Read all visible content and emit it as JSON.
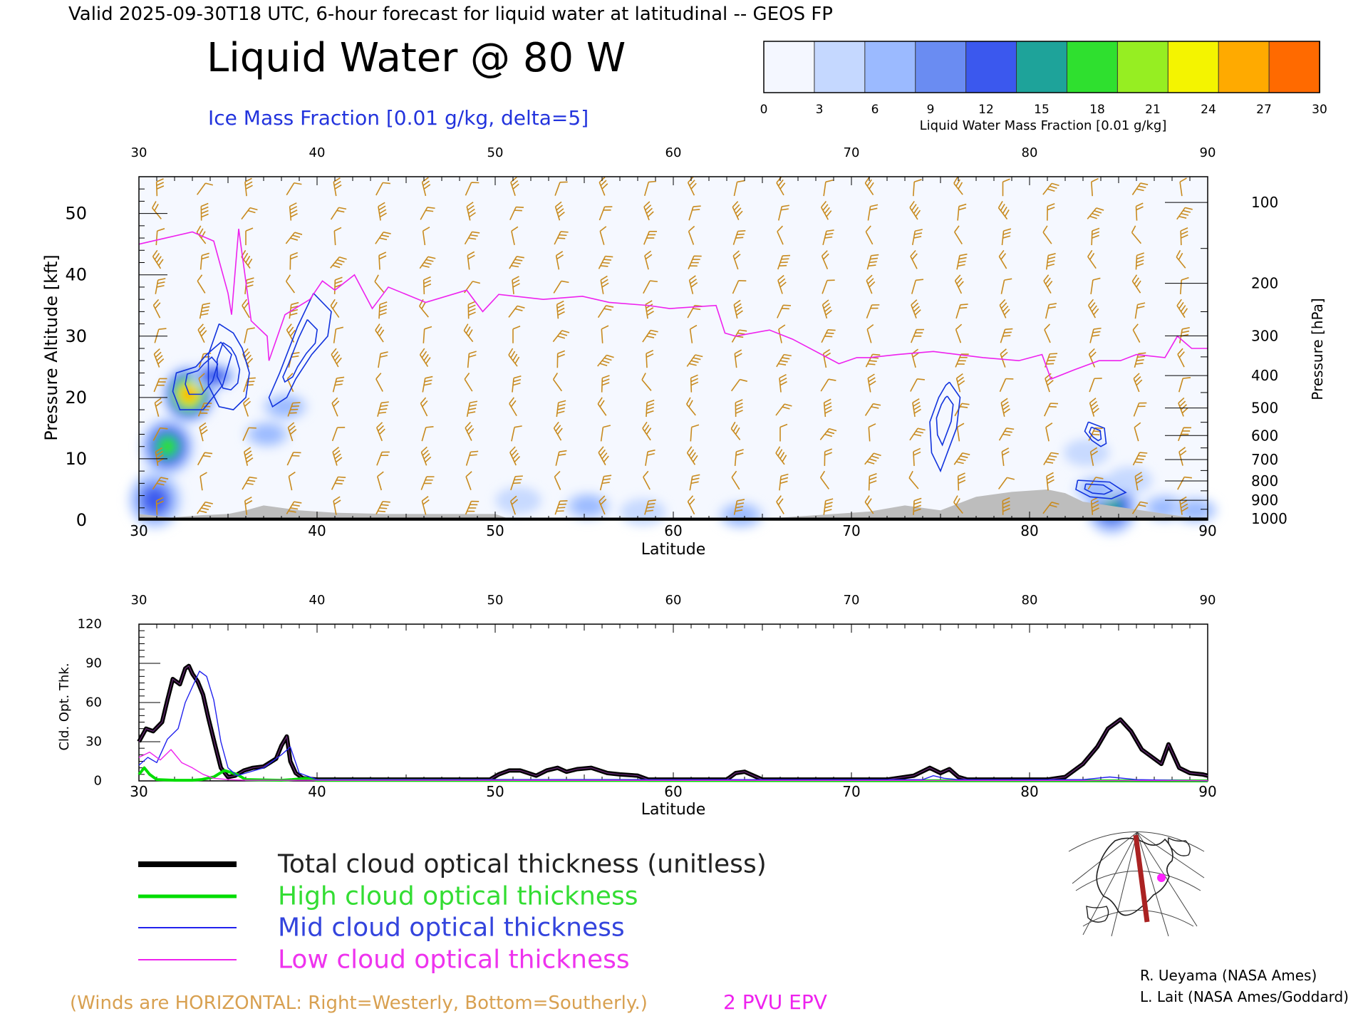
{
  "header": {
    "valid_line": "Valid 2025-09-30T18 UTC, 6-hour forecast for liquid water at latitudinal -- GEOS FP",
    "title": "Liquid Water @ 80 W",
    "ice_label": "Ice Mass Fraction [0.01 g/kg, delta=5]"
  },
  "colorbar": {
    "ticks": [
      "0",
      "3",
      "6",
      "9",
      "12",
      "15",
      "18",
      "21",
      "24",
      "27",
      "30"
    ],
    "label": "Liquid Water Mass Fraction [0.01 g/kg]",
    "colors": [
      "#f4f7ff",
      "#c5d8ff",
      "#9bbaff",
      "#6a8cf2",
      "#3b58ee",
      "#1ea39a",
      "#2fe02f",
      "#96ee22",
      "#f4f400",
      "#ffaa00",
      "#ff6a00"
    ]
  },
  "top_panel": {
    "xlabel": "Latitude",
    "ylabel": "Pressure Altitude [kft]",
    "y2label": "Pressure [hPa]",
    "x_ticks": [
      "30",
      "40",
      "50",
      "60",
      "70",
      "80",
      "90"
    ],
    "y_ticks": [
      "0",
      "10",
      "20",
      "30",
      "40",
      "50"
    ],
    "p_ticks": [
      "100",
      "200",
      "300",
      "400",
      "500",
      "600",
      "700",
      "800",
      "900",
      "1000"
    ]
  },
  "bottom_panel": {
    "xlabel": "Latitude",
    "ylabel": "Cld. Opt. Thk.",
    "x_ticks": [
      "30",
      "40",
      "50",
      "60",
      "70",
      "80",
      "90"
    ],
    "y_ticks": [
      "0",
      "30",
      "60",
      "90",
      "120"
    ]
  },
  "legend": [
    {
      "label": "Total cloud optical thickness (unitless)",
      "color": "#000000"
    },
    {
      "label": "High cloud optical thickness",
      "color": "#00dd00"
    },
    {
      "label": "Mid cloud optical thickness",
      "color": "#2222ee"
    },
    {
      "label": "Low cloud optical thickness",
      "color": "#ee22ee"
    }
  ],
  "footer": {
    "winds_note": "(Winds are HORIZONTAL: Right=Westerly, Bottom=Southerly.)",
    "pvu": "2 PVU EPV",
    "credit1": "R. Ueyama (NASA Ames)",
    "credit2": "L. Lait (NASA Ames/Goddard)"
  },
  "colors": {
    "wind": "#c88a1e",
    "epv": "#ee22ee",
    "ice": "#1133dd",
    "terrain": "#bdbdbd"
  },
  "chart_data": [
    {
      "type": "heatmap",
      "title": "Liquid Water @ 80 W",
      "xlabel": "Latitude",
      "ylabel": "Pressure Altitude [kft]",
      "xlim": [
        30,
        90
      ],
      "ylim": [
        0,
        56
      ],
      "liquid_water_blobs": [
        {
          "lat": 32.8,
          "alt": 20.5,
          "peak": 28
        },
        {
          "lat": 31.6,
          "alt": 12.0,
          "peak": 18
        },
        {
          "lat": 34.2,
          "alt": 23.5,
          "peak": 12
        },
        {
          "lat": 37.2,
          "alt": 14.0,
          "peak": 6
        },
        {
          "lat": 38.2,
          "alt": 18.5,
          "peak": 6
        },
        {
          "lat": 30.9,
          "alt": 3.3,
          "peak": 14
        },
        {
          "lat": 84.6,
          "alt": 2.3,
          "peak": 17
        },
        {
          "lat": 83.8,
          "alt": 5.0,
          "peak": 8
        },
        {
          "lat": 85.6,
          "alt": 6.5,
          "peak": 5
        },
        {
          "lat": 87.6,
          "alt": 2.0,
          "peak": 6
        },
        {
          "lat": 83.2,
          "alt": 11.0,
          "peak": 4
        },
        {
          "lat": 55.2,
          "alt": 2.3,
          "peak": 8
        },
        {
          "lat": 51.3,
          "alt": 3.2,
          "peak": 5
        },
        {
          "lat": 58.3,
          "alt": 1.3,
          "peak": 5
        },
        {
          "lat": 63.8,
          "alt": 0.8,
          "peak": 8
        },
        {
          "lat": 89.3,
          "alt": 1.6,
          "peak": 6
        }
      ],
      "epv_2pvu_line": {
        "lat": [
          30,
          31.5,
          33,
          34.2,
          35.0,
          35.2,
          35.6,
          36.3,
          37.2,
          37.3,
          38.2,
          39.6,
          40.3,
          41.0,
          42.1,
          43.1,
          44.0,
          46.1,
          48.4,
          49.3,
          50.2,
          52.7,
          54.9,
          56.4,
          58.6,
          59.8,
          62.4,
          62.9,
          63.5,
          65.4,
          66.7,
          69.3,
          70.3,
          71.0,
          72.6,
          74.6,
          77.4,
          79.4,
          80.7,
          81.2,
          82.5,
          83.9,
          85.1,
          86.0,
          87.6,
          88.3,
          89.1,
          90
        ],
        "alt_kft": [
          45,
          46,
          47,
          45.5,
          37,
          33.5,
          47.5,
          32.5,
          30,
          26,
          33.5,
          36,
          39,
          37.5,
          40,
          34.5,
          38,
          35.5,
          37.5,
          34,
          36.8,
          36,
          36.5,
          35.5,
          35,
          34.5,
          35,
          30.5,
          30,
          31,
          29.5,
          25.5,
          26.5,
          26.5,
          27,
          27.5,
          26.5,
          26,
          27,
          23,
          24.5,
          26,
          26,
          27,
          26.5,
          30,
          28,
          28
        ]
      },
      "ice_contours": [
        {
          "name": "ice-1",
          "lat": [
            34.5,
            35.3,
            35.8,
            36.2,
            36.0,
            35.3,
            34.5,
            33.9,
            33.9,
            34.5
          ],
          "alt": [
            32,
            30.5,
            28,
            24,
            20,
            18,
            18.5,
            22,
            27,
            32
          ]
        },
        {
          "name": "ice-2",
          "lat": [
            33.2,
            33.8,
            34.6,
            35.2,
            34.7,
            33.6,
            32.3,
            31.9,
            32.1,
            33.2
          ],
          "alt": [
            25,
            27,
            29,
            27,
            22,
            18,
            18,
            21,
            24,
            25
          ]
        },
        {
          "name": "ice-3",
          "lat": [
            39.8,
            40.8,
            40.6,
            39.7,
            38.8,
            38.3,
            37.5,
            37.3,
            37.9,
            38.9,
            39.8
          ],
          "alt": [
            37,
            34,
            30,
            27,
            23,
            20,
            18.5,
            20,
            24,
            31.5,
            37
          ]
        },
        {
          "name": "ice-4",
          "lat": [
            75.5,
            76.1,
            75.9,
            75.0,
            74.5,
            74.4,
            74.9,
            75.3,
            75.5
          ],
          "alt": [
            22.5,
            20,
            15,
            8,
            11,
            16,
            20,
            22,
            22.5
          ]
        },
        {
          "name": "ice-5",
          "lat": [
            83.3,
            84.2,
            84.3,
            84.0,
            83.5,
            83.1,
            83.3
          ],
          "alt": [
            16,
            15,
            12.5,
            12,
            13,
            14.5,
            16
          ]
        },
        {
          "name": "ice-6",
          "lat": [
            82.7,
            84.5,
            85.4,
            84.6,
            83.4,
            82.6,
            82.7
          ],
          "alt": [
            6.5,
            6.2,
            4.5,
            3.5,
            3.8,
            5.0,
            6.5
          ]
        }
      ],
      "terrain": {
        "lat": [
          30,
          31.8,
          33.5,
          35,
          36,
          37,
          39,
          41,
          44,
          47,
          50,
          51,
          62,
          64,
          71,
          73,
          75,
          77,
          79,
          81,
          82,
          83,
          90
        ],
        "alt_kft": [
          1.0,
          0.4,
          0.8,
          1.0,
          1.6,
          2.4,
          1.6,
          1.2,
          1.0,
          1.0,
          1.0,
          0,
          0,
          0,
          1.4,
          2.4,
          1.6,
          3.8,
          4.6,
          5.0,
          4.4,
          3.0,
          0
        ]
      },
      "wind_barb_grid": {
        "lat_step": 2.5,
        "alt_step_kft": 4,
        "lat_range": [
          31,
          89
        ],
        "alt_range_kft": [
          2,
          54
        ]
      }
    },
    {
      "type": "line",
      "xlabel": "Latitude",
      "ylabel": "Cld. Opt. Thk.",
      "xlim": [
        30,
        90
      ],
      "ylim": [
        0,
        120
      ],
      "series": [
        {
          "name": "Total cloud optical thickness (unitless)",
          "x": [
            30,
            30.4,
            30.8,
            31.3,
            31.6,
            31.9,
            32.3,
            32.6,
            32.8,
            33.0,
            33.3,
            33.6,
            33.9,
            34.3,
            34.6,
            35.0,
            35.4,
            35.9,
            36.4,
            37.0,
            37.7,
            38.0,
            38.3,
            38.5,
            38.8,
            39.2,
            40,
            49,
            49.7,
            50.2,
            50.8,
            51.4,
            52.3,
            52.9,
            53.5,
            54.0,
            54.6,
            55.4,
            56.3,
            57.0,
            58.0,
            58.6,
            60,
            63,
            63.5,
            64.0,
            64.5,
            65,
            72,
            73.5,
            74.4,
            75.0,
            75.5,
            76.0,
            76.5,
            81,
            82.0,
            83.0,
            83.8,
            84.4,
            85.1,
            85.7,
            86.3,
            86.9,
            87.4,
            87.8,
            88.4,
            89.0,
            89.7,
            90
          ],
          "y": [
            30,
            40,
            38,
            45,
            62,
            78,
            74,
            86,
            88,
            82,
            76,
            66,
            48,
            26,
            10,
            3,
            4,
            8,
            10,
            11,
            17,
            27,
            34,
            15,
            6,
            2,
            1,
            1,
            1,
            5,
            8,
            8,
            4,
            8,
            10,
            7,
            9,
            10,
            6,
            5,
            4,
            1,
            1,
            1,
            6,
            7,
            4,
            1,
            1,
            4,
            10,
            6,
            9,
            3,
            1,
            1,
            3,
            13,
            26,
            40,
            47,
            38,
            24,
            18,
            13,
            28,
            10,
            6,
            5,
            4
          ]
        },
        {
          "name": "High cloud optical thickness",
          "x": [
            30,
            30.3,
            30.6,
            31,
            32,
            33,
            33.5,
            34.2,
            34.8,
            35.5,
            36,
            38,
            38.6,
            39.4,
            40,
            90
          ],
          "y": [
            5,
            10,
            5,
            1,
            0.5,
            0.5,
            1,
            3,
            8,
            5,
            1,
            0.5,
            1,
            2,
            0.5,
            0
          ]
        },
        {
          "name": "Mid cloud optical thickness",
          "x": [
            30,
            30.5,
            31,
            31.6,
            32.2,
            32.6,
            33.0,
            33.4,
            33.8,
            34.2,
            34.6,
            35.0,
            35.5,
            36,
            37,
            38,
            38.5,
            39,
            40,
            74,
            74.6,
            75.2,
            76,
            83,
            84.5,
            86,
            90
          ],
          "y": [
            12,
            18,
            14,
            32,
            40,
            60,
            72,
            84,
            80,
            62,
            30,
            10,
            4,
            6,
            10,
            20,
            26,
            6,
            1,
            1,
            4,
            2,
            1,
            1,
            3,
            1,
            0
          ]
        },
        {
          "name": "Low cloud optical thickness",
          "x": [
            30,
            30.6,
            31.2,
            31.8,
            32.4,
            33.0,
            33.6,
            34.2,
            35,
            36,
            90
          ],
          "y": [
            18,
            22,
            16,
            24,
            14,
            10,
            5,
            2,
            1,
            0.5,
            0.2
          ]
        }
      ]
    }
  ]
}
